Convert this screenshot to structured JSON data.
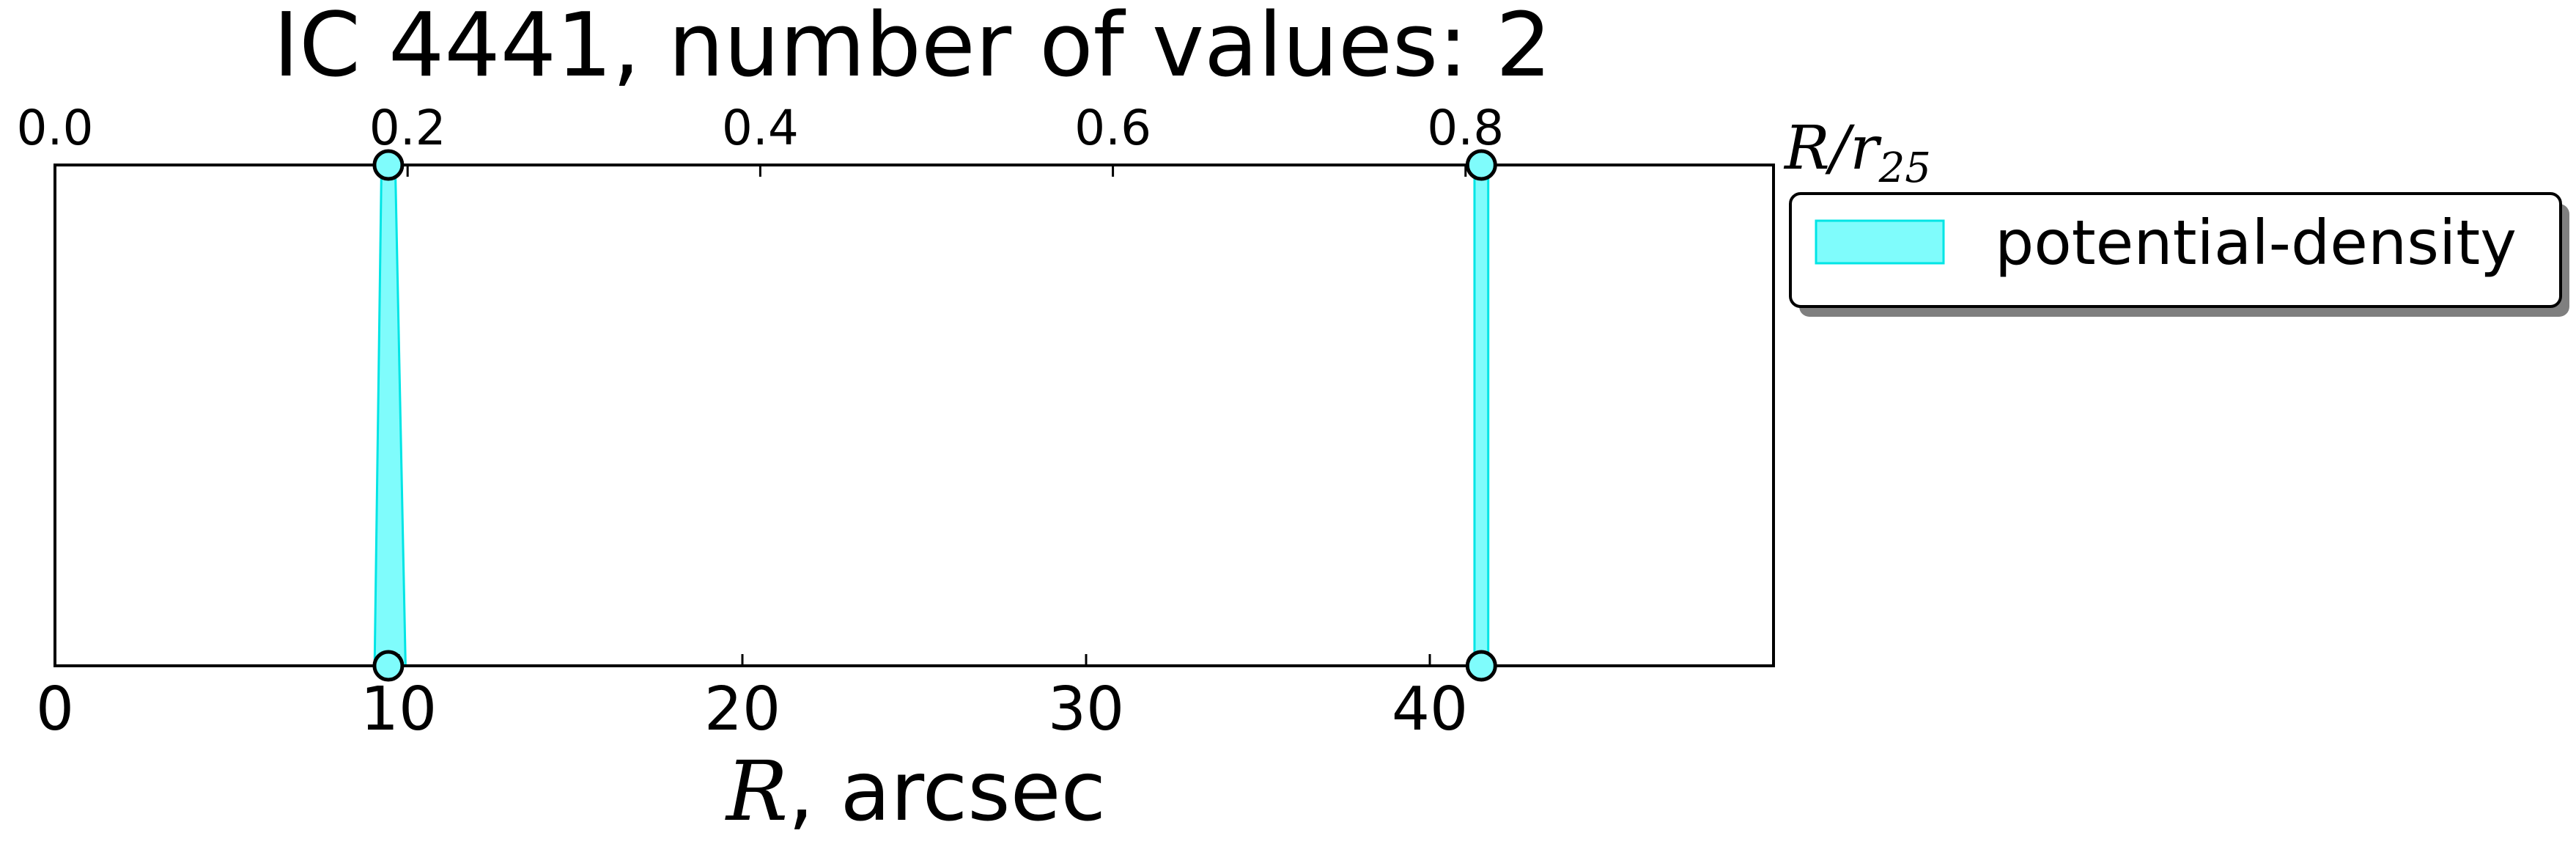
{
  "chart_data": {
    "type": "area",
    "title": "IC 4441, number of values: 2",
    "xlabel": "R, arcsec",
    "xlabel_var": "R",
    "xlabel_unit": ", arcsec",
    "top_axis_label": "R/r25",
    "top_axis_label_var": "R/r",
    "top_axis_label_sub": "25",
    "xlim": [
      0,
      50
    ],
    "xticks": [
      0,
      10,
      20,
      30,
      40
    ],
    "top_xticks": [
      "0.0",
      "0.2",
      "0.4",
      "0.6",
      "0.8"
    ],
    "top_xtick_values": [
      0.0,
      0.2,
      0.4,
      0.6,
      0.8
    ],
    "top_axis_scale": 51.3,
    "y_axis_shown": false,
    "grid": false,
    "legend": {
      "placement": "outside-right",
      "entries": [
        "potential-density"
      ]
    },
    "series": [
      {
        "name": "potential-density",
        "color": "#7ffcfc",
        "edge_color": "#00e5e5",
        "marker_edge_color": "#000000",
        "markers": [
          {
            "x": 9.7,
            "level": "top"
          },
          {
            "x": 9.7,
            "level": "bottom"
          },
          {
            "x": 41.5,
            "level": "top"
          },
          {
            "x": 41.5,
            "level": "bottom"
          }
        ],
        "bands": [
          {
            "x_bottom": [
              9.3,
              10.2
            ],
            "x_top": [
              9.5,
              9.9
            ]
          },
          {
            "x_bottom": [
              41.3,
              41.7
            ],
            "x_top": [
              41.3,
              41.7
            ]
          }
        ]
      }
    ]
  }
}
